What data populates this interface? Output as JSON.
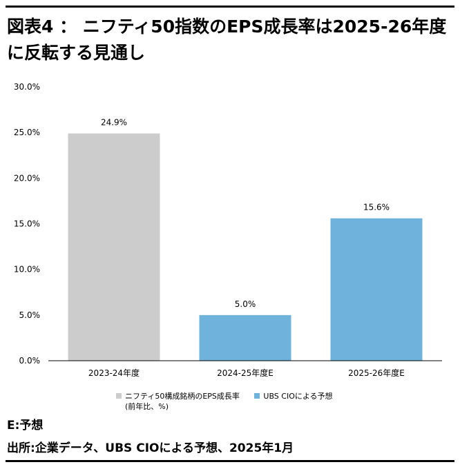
{
  "title": "図表4 ： ニフティ50指数のEPS成長率は2025-26年度に反転する見通し",
  "colors": {
    "actual": "#cccccc",
    "forecast": "#6fb3dd",
    "axis": "#000000",
    "text": "#000000"
  },
  "legend": [
    {
      "label": "ニフティ50構成銘柄のEPS成長率",
      "sublabel": "(前年比、%)",
      "color": "#cccccc"
    },
    {
      "label": "UBS CIOによる予想",
      "color": "#6fb3dd"
    }
  ],
  "chart_data": {
    "type": "bar",
    "categories": [
      "2023-24年度",
      "2024-25年度E",
      "2025-26年度E"
    ],
    "values": [
      24.9,
      5.0,
      15.6
    ],
    "data_labels": [
      "24.9%",
      "5.0%",
      "15.6%"
    ],
    "bar_colors": [
      "#cccccc",
      "#6fb3dd",
      "#6fb3dd"
    ],
    "ylim": [
      0,
      30
    ],
    "yticks": [
      "0.0%",
      "5.0%",
      "10.0%",
      "15.0%",
      "20.0%",
      "25.0%",
      "30.0%"
    ],
    "ytick_values": [
      0,
      5,
      10,
      15,
      20,
      25,
      30
    ],
    "grid": false,
    "legend_position": "bottom"
  },
  "notes": {
    "forecast": "E:予想",
    "source": "出所:企業データ、UBS CIOによる予想、2025年1月"
  }
}
